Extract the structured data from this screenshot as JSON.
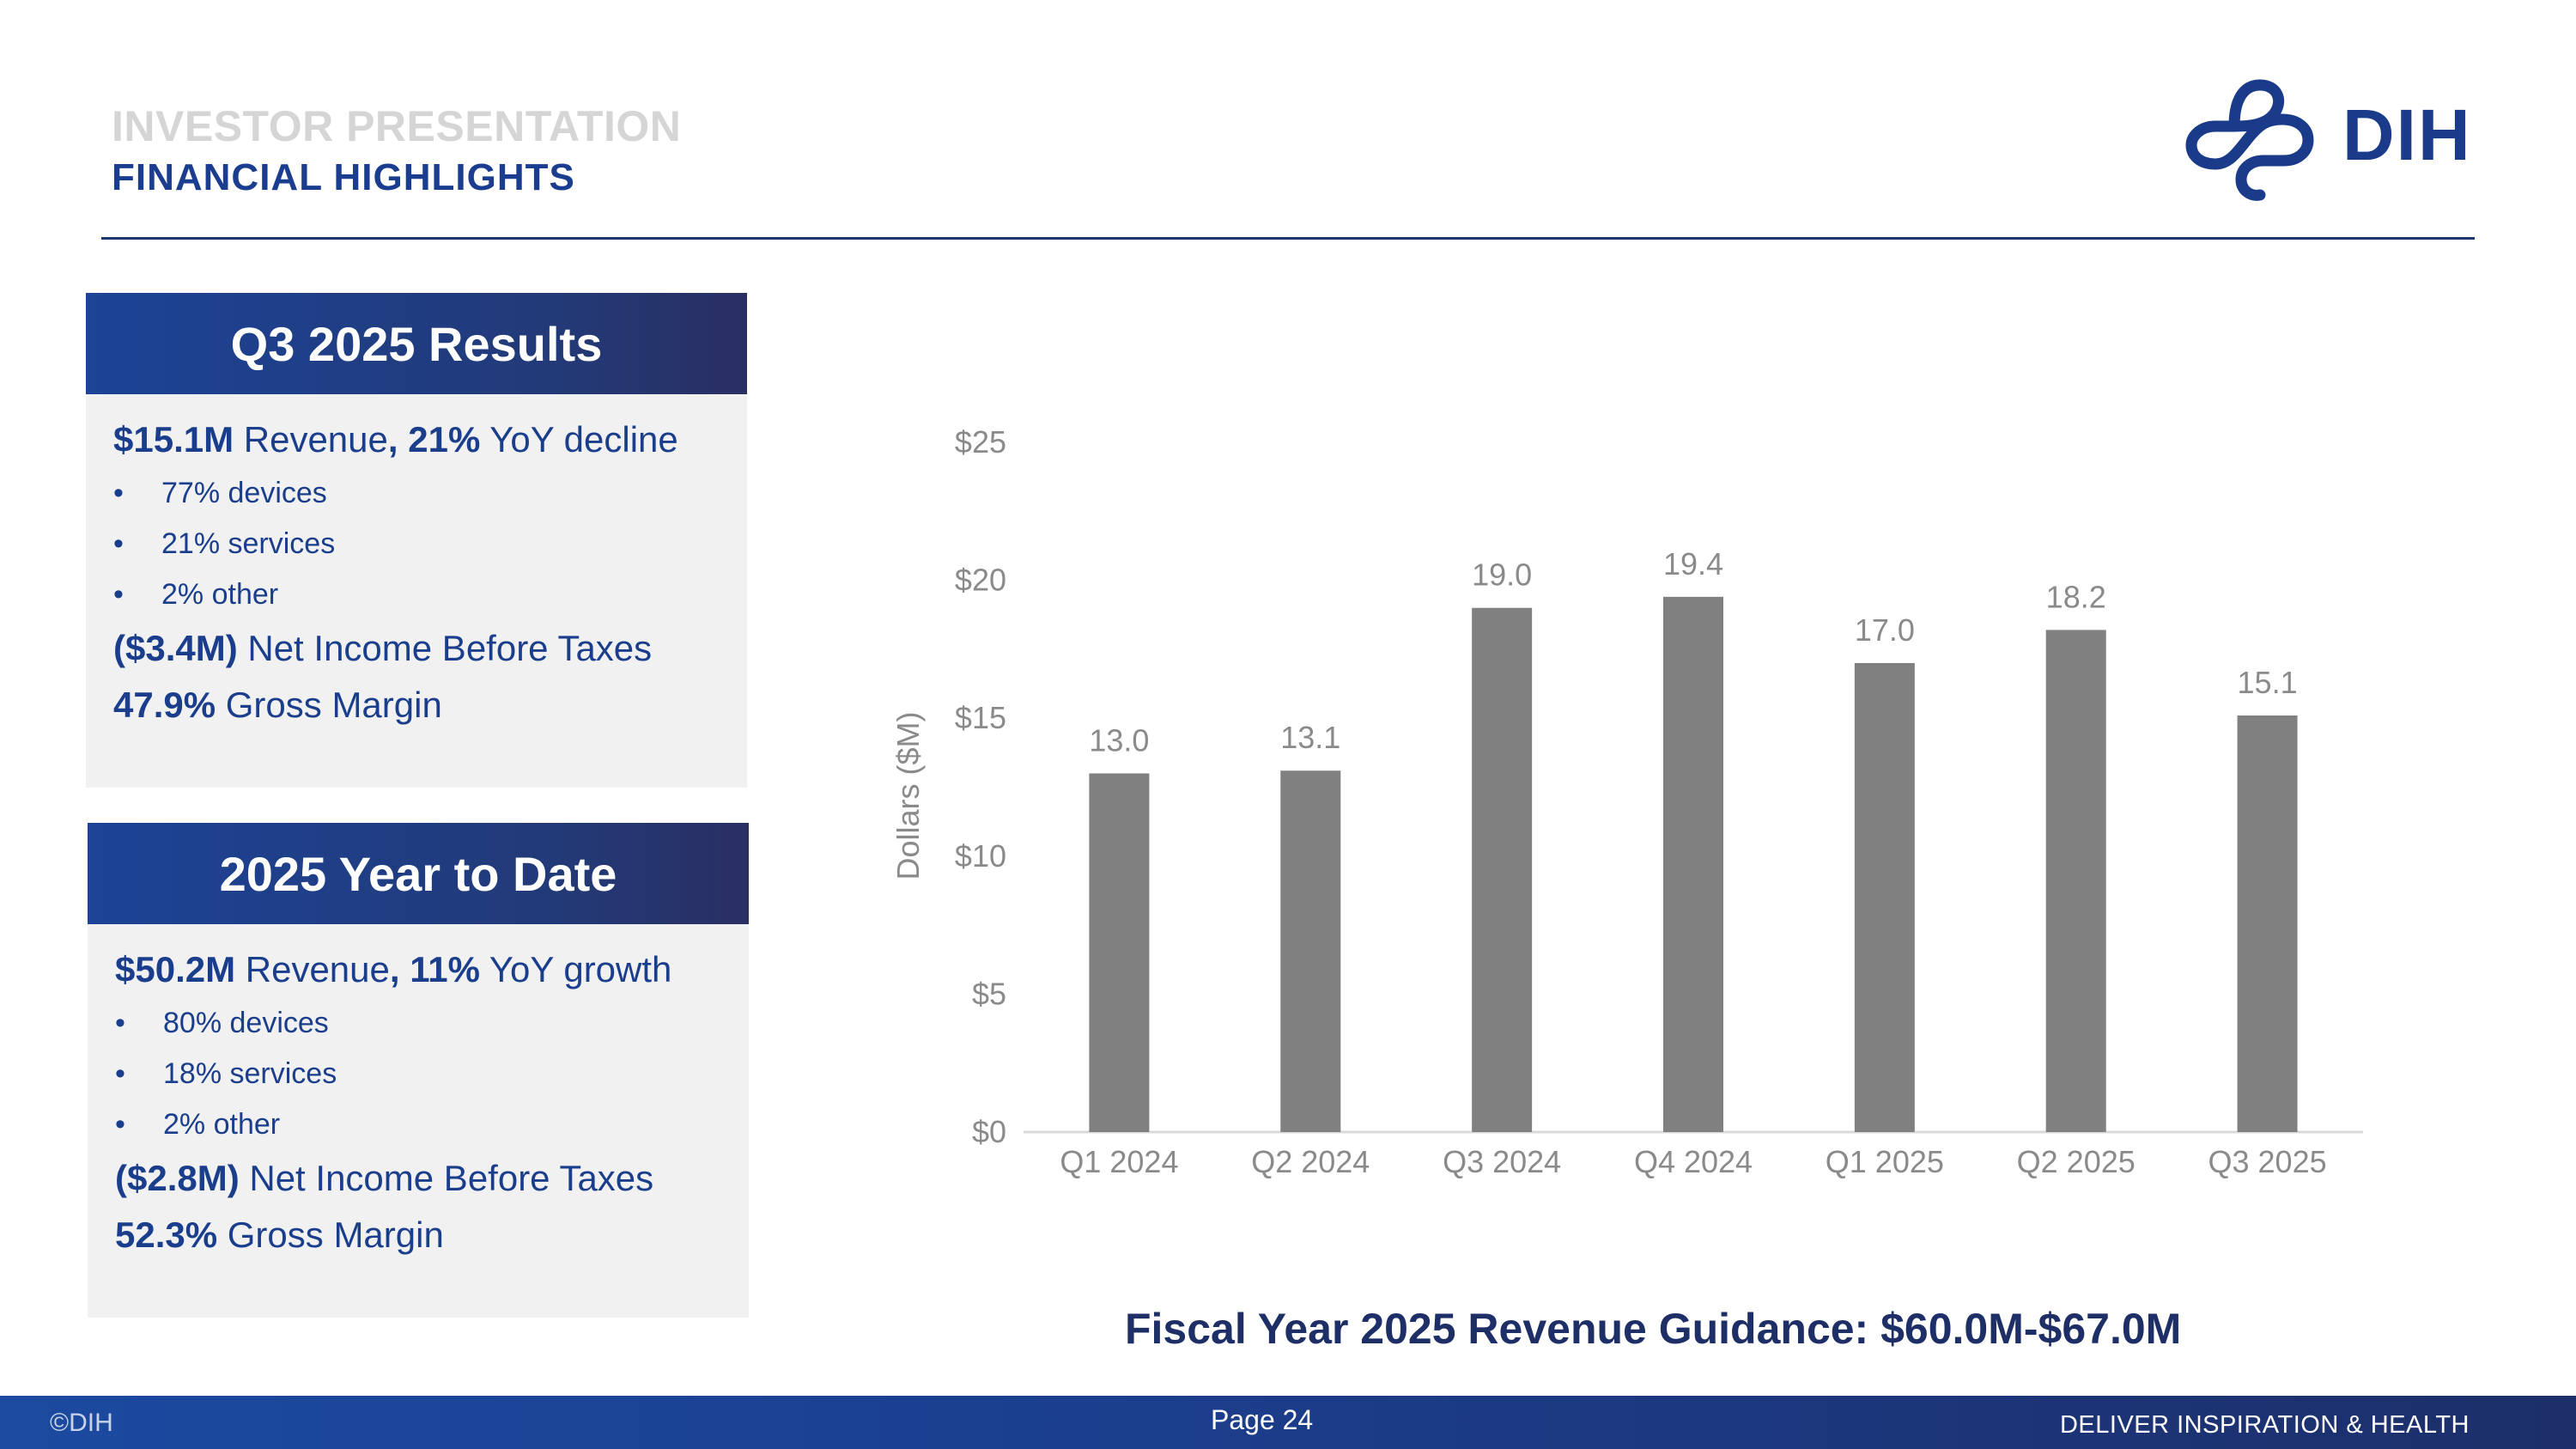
{
  "header": {
    "supertitle": "INVESTOR PRESENTATION",
    "title": "FINANCIAL HIGHLIGHTS",
    "logo_text": "DIH"
  },
  "panels": [
    {
      "title": "Q3 2025 Results",
      "revenue": "$15.1M",
      "revenue_text": " Revenue",
      "comma": ",",
      "change": " 21%",
      "change_text": " YoY decline",
      "bullets": [
        "77% devices",
        "21% services",
        "2% other"
      ],
      "net_income": "($3.4M)",
      "net_income_text": " Net Income Before Taxes",
      "gross_margin": "47.9%",
      "gross_margin_text": " Gross Margin"
    },
    {
      "title": "2025 Year to Date",
      "revenue": "$50.2M",
      "revenue_text": " Revenue",
      "comma": ",",
      "change": " 11%",
      "change_text": " YoY growth",
      "bullets": [
        "80% devices",
        "18% services",
        "2% other"
      ],
      "net_income": "($2.8M)",
      "net_income_text": " Net Income Before Taxes",
      "gross_margin": "52.3%",
      "gross_margin_text": " Gross Margin"
    }
  ],
  "chart_data": {
    "type": "bar",
    "title": "",
    "xlabel": "",
    "ylabel": "Dollars ($M)",
    "categories": [
      "Q1 2024",
      "Q2 2024",
      "Q3 2024",
      "Q4 2024",
      "Q1 2025",
      "Q2 2025",
      "Q3 2025"
    ],
    "values": [
      13.0,
      13.1,
      19.0,
      19.4,
      17.0,
      18.2,
      15.1
    ],
    "data_labels": [
      "13.0",
      "13.1",
      "19.0",
      "19.4",
      "17.0",
      "18.2",
      "15.1"
    ],
    "ylim": [
      0,
      25
    ],
    "yticks": [
      0,
      5,
      10,
      15,
      20,
      25
    ],
    "ytick_labels": [
      "$0",
      "$5",
      "$10",
      "$15",
      "$20",
      "$25"
    ],
    "grid": false,
    "bar_color": "#808080"
  },
  "guidance": "Fiscal Year 2025 Revenue Guidance: $60.0M-$67.0M",
  "footer": {
    "copyright": "©DIH",
    "page": "Page 24",
    "tagline": "DELIVER INSPIRATION & HEALTH"
  }
}
